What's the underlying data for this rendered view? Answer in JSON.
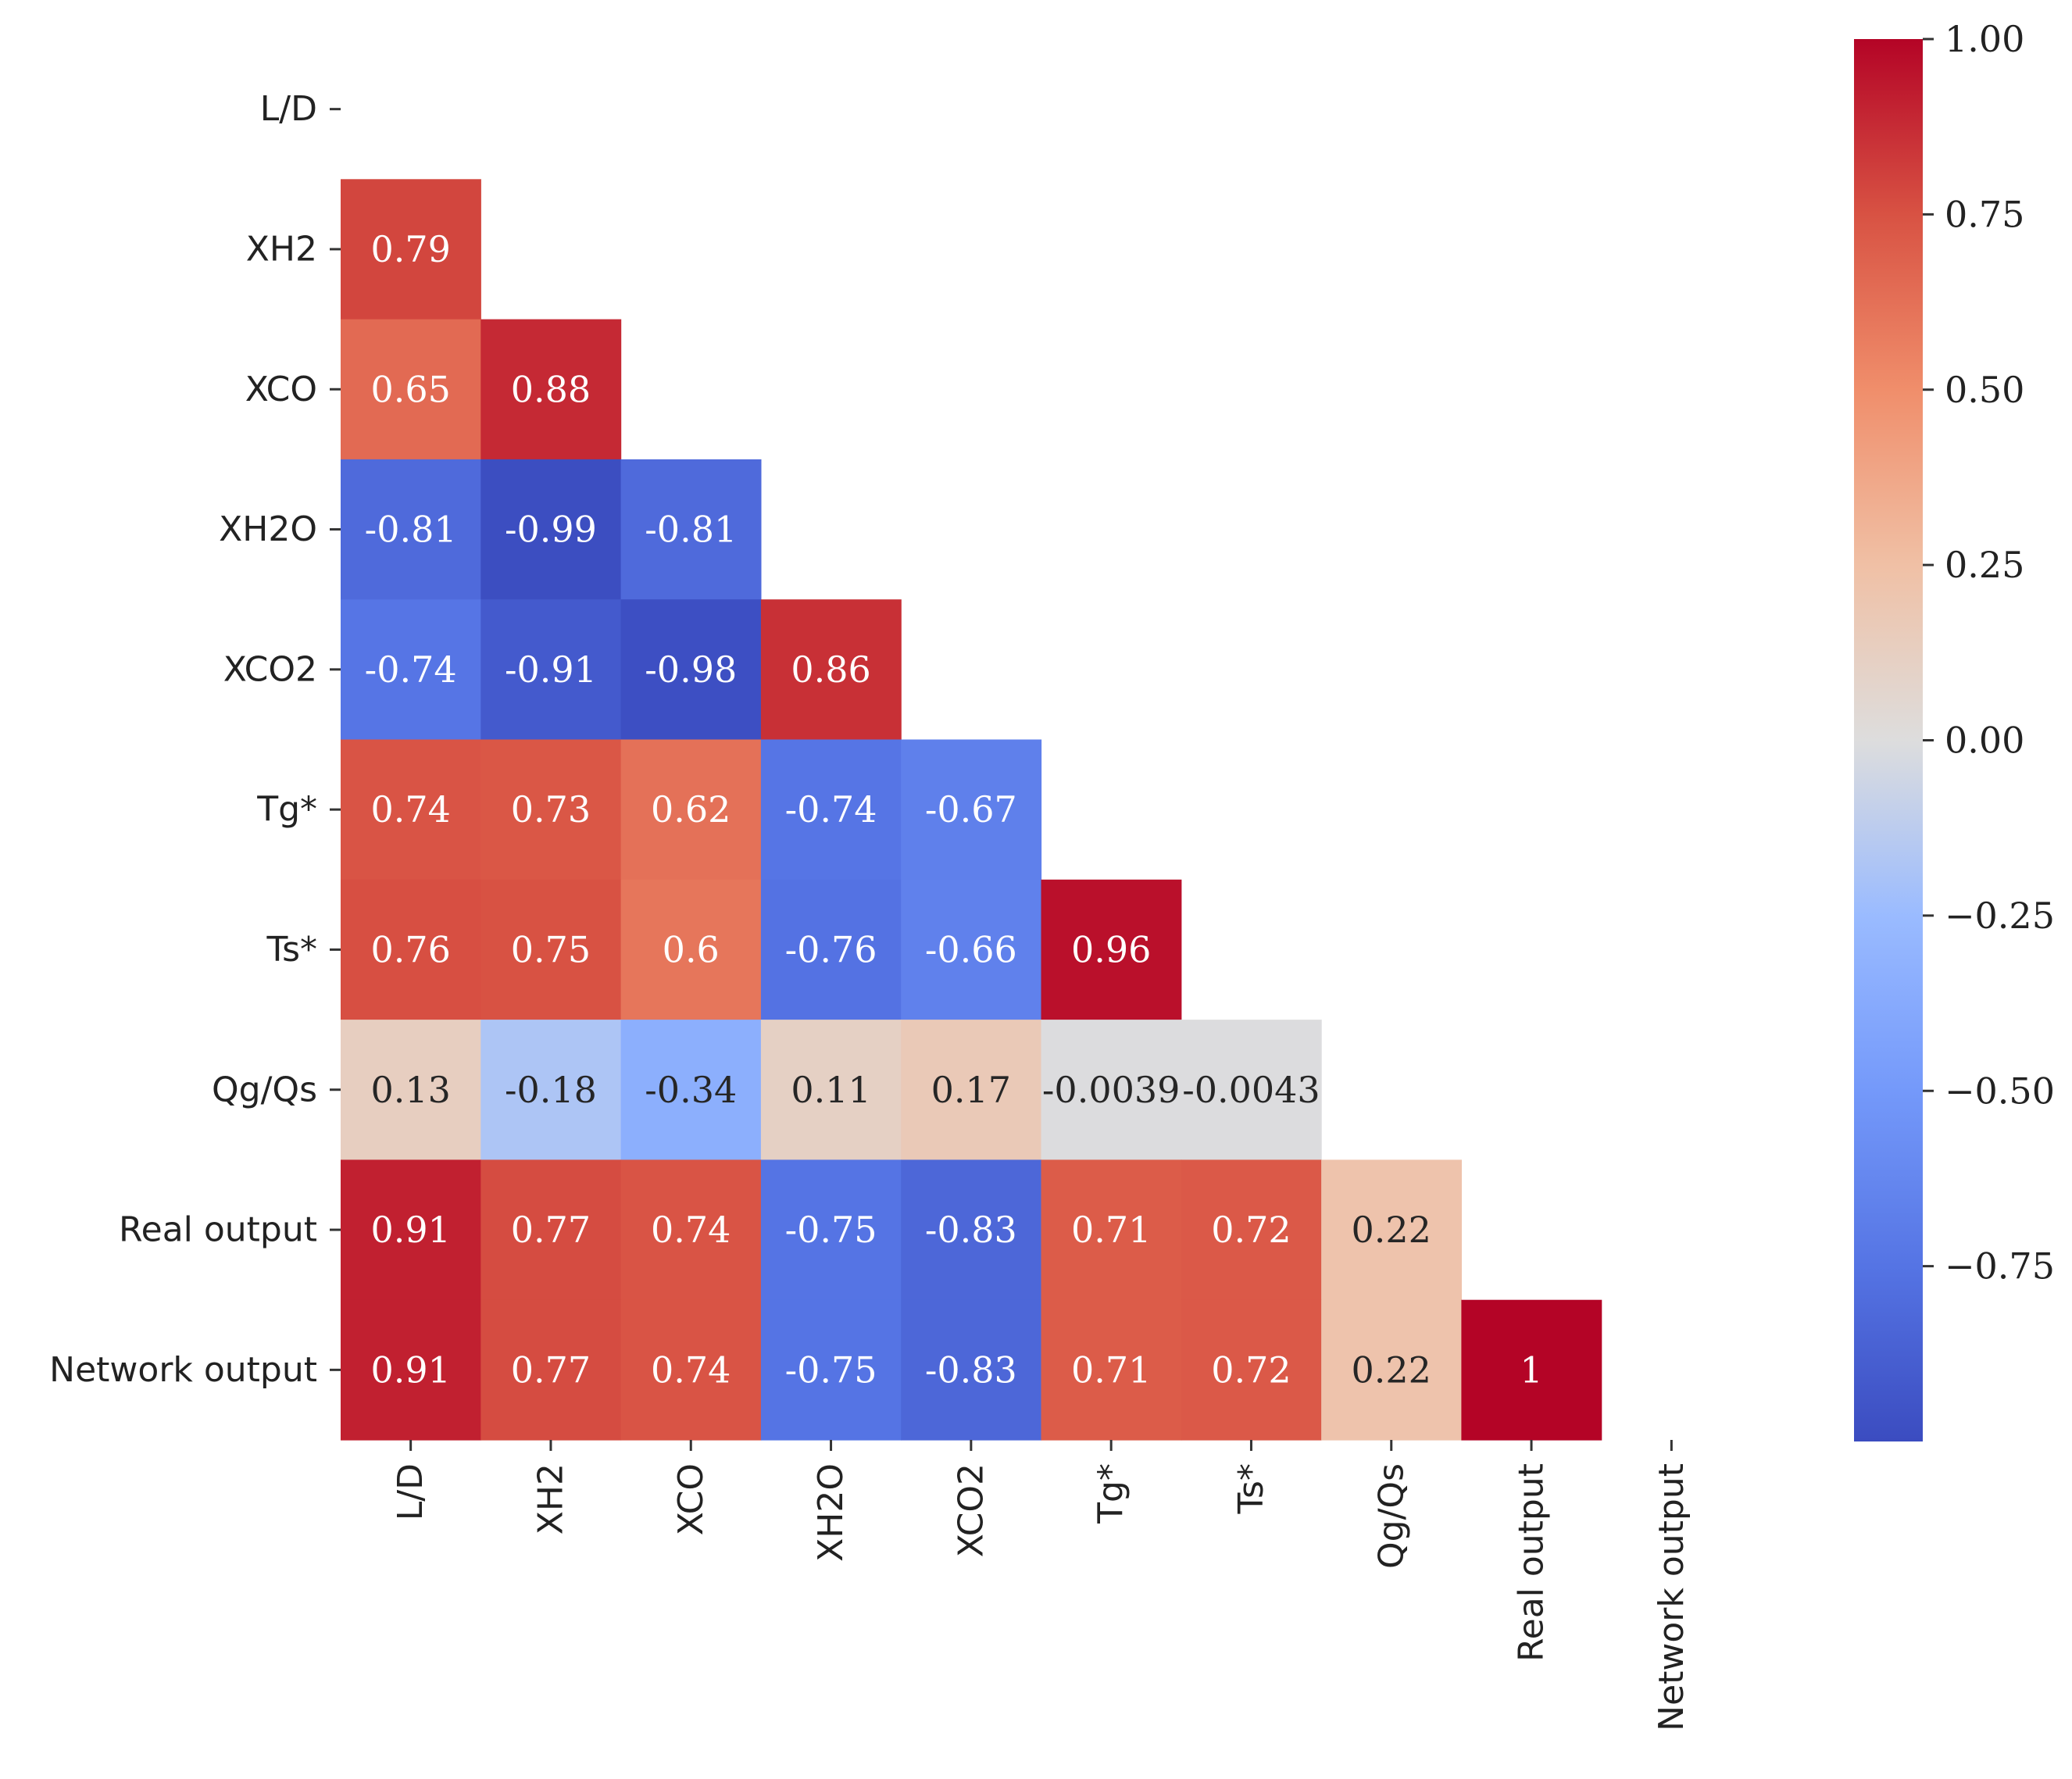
{
  "chart_data": {
    "type": "heatmap",
    "title": "",
    "xlabel": "",
    "ylabel": "",
    "variables": [
      "L/D",
      "XH2",
      "XCO",
      "XH2O",
      "XCO2",
      "Tg*",
      "Ts*",
      "Qg/Qs",
      "Real output",
      "Network output"
    ],
    "mask": "upper-triangle-including-diagonal",
    "lower_triangle": [
      [],
      [
        0.79
      ],
      [
        0.65,
        0.88
      ],
      [
        -0.81,
        -0.99,
        -0.81
      ],
      [
        -0.74,
        -0.91,
        -0.98,
        0.86
      ],
      [
        0.74,
        0.73,
        0.62,
        -0.74,
        -0.67
      ],
      [
        0.76,
        0.75,
        0.6,
        -0.76,
        -0.66,
        0.96
      ],
      [
        0.13,
        -0.18,
        -0.34,
        0.11,
        0.17,
        -0.0039,
        -0.0043
      ],
      [
        0.91,
        0.77,
        0.74,
        -0.75,
        -0.83,
        0.71,
        0.72,
        0.22
      ],
      [
        0.91,
        0.77,
        0.74,
        -0.75,
        -0.83,
        0.71,
        0.72,
        0.22,
        1
      ]
    ],
    "cell_labels": [
      [],
      [
        "0.79"
      ],
      [
        "0.65",
        "0.88"
      ],
      [
        "-0.81",
        "-0.99",
        "-0.81"
      ],
      [
        "-0.74",
        "-0.91",
        "-0.98",
        "0.86"
      ],
      [
        "0.74",
        "0.73",
        "0.62",
        "-0.74",
        "-0.67"
      ],
      [
        "0.76",
        "0.75",
        "0.6",
        "-0.76",
        "-0.66",
        "0.96"
      ],
      [
        "0.13",
        "-0.18",
        "-0.34",
        "0.11",
        "0.17",
        "-0.0039",
        "-0.0043"
      ],
      [
        "0.91",
        "0.77",
        "0.74",
        "-0.75",
        "-0.83",
        "0.71",
        "0.72",
        "0.22"
      ],
      [
        "0.91",
        "0.77",
        "0.74",
        "-0.75",
        "-0.83",
        "0.71",
        "0.72",
        "0.22",
        "1"
      ]
    ],
    "colormap": "coolwarm",
    "color_range": [
      -1,
      1
    ],
    "colorbar": {
      "range": [
        -1.0,
        1.0
      ],
      "ticks": [
        1.0,
        0.75,
        0.5,
        0.25,
        0.0,
        -0.25,
        -0.5,
        -0.75
      ],
      "tick_labels": [
        "1.00",
        "0.75",
        "0.50",
        "0.25",
        "0.00",
        "−0.25",
        "−0.50",
        "−0.75"
      ]
    }
  }
}
